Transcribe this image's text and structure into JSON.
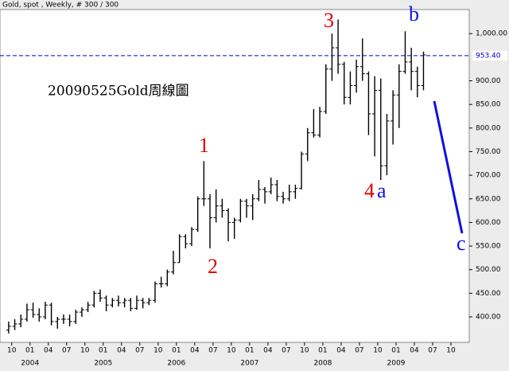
{
  "chart_data": {
    "type": "ohlc",
    "title": "Gold, spot , Weekly, # 300 / 300",
    "annotation": "20090525Gold周線圖",
    "waves": {
      "w1": "1",
      "w2": "2",
      "w3": "3",
      "w4": "4",
      "wa": "a",
      "wb": "b",
      "wc": "c"
    },
    "color": "#000000",
    "x": [
      "2003-09",
      "2003-10",
      "2003-11",
      "2003-12",
      "2004-01",
      "2004-02",
      "2004-03",
      "2004-04",
      "2004-05",
      "2004-06",
      "2004-07",
      "2004-08",
      "2004-09",
      "2004-10",
      "2004-11",
      "2004-12",
      "2005-01",
      "2005-02",
      "2005-03",
      "2005-04",
      "2005-05",
      "2005-06",
      "2005-07",
      "2005-08",
      "2005-09",
      "2005-10",
      "2005-11",
      "2005-12",
      "2006-01",
      "2006-02",
      "2006-03",
      "2006-04",
      "2006-05",
      "2006-06",
      "2006-07",
      "2006-08",
      "2006-09",
      "2006-10",
      "2006-11",
      "2006-12",
      "2007-01",
      "2007-02",
      "2007-03",
      "2007-04",
      "2007-05",
      "2007-06",
      "2007-07",
      "2007-08",
      "2007-09",
      "2007-10",
      "2007-11",
      "2007-12",
      "2008-01",
      "2008-02",
      "2008-03",
      "2008-04",
      "2008-05",
      "2008-06",
      "2008-07",
      "2008-08",
      "2008-09",
      "2008-10",
      "2008-11",
      "2008-12",
      "2009-01",
      "2009-02",
      "2009-03",
      "2009-04",
      "2009-05"
    ],
    "open": [
      372,
      380,
      385,
      395,
      415,
      405,
      400,
      425,
      390,
      395,
      395,
      390,
      410,
      415,
      425,
      450,
      440,
      425,
      435,
      430,
      435,
      418,
      435,
      430,
      435,
      470,
      470,
      495,
      515,
      570,
      555,
      585,
      650,
      650,
      610,
      635,
      625,
      600,
      605,
      645,
      635,
      650,
      670,
      665,
      680,
      655,
      650,
      665,
      672,
      745,
      790,
      785,
      835,
      925,
      970,
      935,
      865,
      890,
      930,
      915,
      830,
      880,
      720,
      815,
      870,
      920,
      940,
      920,
      890
    ],
    "high": [
      390,
      395,
      405,
      428,
      430,
      418,
      432,
      430,
      400,
      405,
      405,
      415,
      420,
      432,
      455,
      458,
      445,
      440,
      445,
      440,
      440,
      445,
      440,
      440,
      475,
      485,
      500,
      540,
      575,
      575,
      590,
      655,
      730,
      660,
      670,
      650,
      630,
      610,
      650,
      650,
      660,
      690,
      675,
      695,
      690,
      665,
      680,
      680,
      750,
      800,
      840,
      845,
      935,
      1000,
      1030,
      940,
      920,
      945,
      990,
      920,
      910,
      905,
      830,
      880,
      935,
      1005,
      970,
      930,
      962
    ],
    "low": [
      365,
      372,
      378,
      390,
      398,
      390,
      395,
      382,
      375,
      385,
      380,
      385,
      400,
      410,
      420,
      432,
      412,
      420,
      422,
      420,
      412,
      415,
      418,
      425,
      430,
      462,
      465,
      490,
      515,
      545,
      550,
      580,
      635,
      545,
      600,
      610,
      560,
      565,
      600,
      610,
      605,
      645,
      640,
      660,
      645,
      640,
      645,
      650,
      670,
      730,
      780,
      780,
      830,
      900,
      915,
      850,
      850,
      875,
      900,
      785,
      740,
      690,
      700,
      765,
      800,
      915,
      880,
      865,
      880
    ],
    "close": [
      380,
      385,
      395,
      415,
      405,
      400,
      425,
      390,
      395,
      395,
      390,
      410,
      415,
      425,
      450,
      440,
      425,
      435,
      430,
      435,
      418,
      435,
      430,
      435,
      470,
      470,
      495,
      515,
      570,
      555,
      585,
      650,
      650,
      610,
      635,
      625,
      600,
      605,
      645,
      635,
      650,
      670,
      665,
      680,
      655,
      650,
      665,
      672,
      745,
      790,
      785,
      835,
      925,
      970,
      935,
      865,
      890,
      930,
      915,
      830,
      880,
      720,
      815,
      870,
      920,
      940,
      920,
      890,
      955
    ],
    "last_price": {
      "value": 953.4,
      "label": "953.40"
    },
    "ylim": [
      346,
      1051
    ],
    "yticks": [
      {
        "value": 400,
        "label": "400.00"
      },
      {
        "value": 450,
        "label": "450.00"
      },
      {
        "value": 500,
        "label": "500.00"
      },
      {
        "value": 550,
        "label": "550.00"
      },
      {
        "value": 600,
        "label": "600.00"
      },
      {
        "value": 650,
        "label": "650.00"
      },
      {
        "value": 700,
        "label": "700.00"
      },
      {
        "value": 750,
        "label": "750.00"
      },
      {
        "value": 800,
        "label": "800.00"
      },
      {
        "value": 850,
        "label": "850.00"
      },
      {
        "value": 900,
        "label": "900.00"
      },
      {
        "value": 1000,
        "label": "1,000.00"
      }
    ],
    "xlim": [
      2003.59,
      2010
    ],
    "xticks": [
      {
        "value": 2003.75,
        "label": "10"
      },
      {
        "value": 2004,
        "label": "01"
      },
      {
        "value": 2004.25,
        "label": "04"
      },
      {
        "value": 2004.5,
        "label": "07"
      },
      {
        "value": 2004.75,
        "label": "10"
      },
      {
        "value": 2005,
        "label": "01"
      },
      {
        "value": 2005.25,
        "label": "04"
      },
      {
        "value": 2005.5,
        "label": "07"
      },
      {
        "value": 2005.75,
        "label": "10"
      },
      {
        "value": 2006,
        "label": "01"
      },
      {
        "value": 2006.25,
        "label": "04"
      },
      {
        "value": 2006.5,
        "label": "07"
      },
      {
        "value": 2006.75,
        "label": "10"
      },
      {
        "value": 2007,
        "label": "01"
      },
      {
        "value": 2007.25,
        "label": "04"
      },
      {
        "value": 2007.5,
        "label": "07"
      },
      {
        "value": 2007.75,
        "label": "10"
      },
      {
        "value": 2008,
        "label": "01"
      },
      {
        "value": 2008.25,
        "label": "04"
      },
      {
        "value": 2008.5,
        "label": "07"
      },
      {
        "value": 2008.75,
        "label": "10"
      },
      {
        "value": 2009,
        "label": "01"
      },
      {
        "value": 2009.25,
        "label": "04"
      },
      {
        "value": 2009.5,
        "label": "07"
      },
      {
        "value": 2009.75,
        "label": "10"
      }
    ],
    "year_ticks": [
      2004,
      2005,
      2006,
      2007,
      2008,
      2009
    ]
  }
}
